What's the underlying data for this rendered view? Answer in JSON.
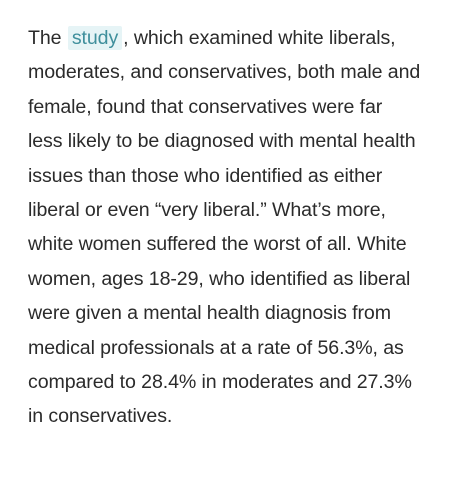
{
  "article": {
    "link_text": "study",
    "lines": [
      {
        "before": "The",
        "after": ", which examined white liberals,"
      },
      "moderates, and conservatives, both male and",
      "female, found that conservatives were far",
      "less likely to be diagnosed with mental health",
      "issues than those who identified as either",
      "liberal or even “very liberal.” What’s more,",
      "white women suffered the worst of all. White",
      "women, ages 18-29, who identified as liberal",
      "were given a mental health diagnosis from",
      "medical professionals at a rate of 56.3%, as",
      "compared to 28.4% in moderates and 27.3%",
      "in conservatives."
    ]
  },
  "colors": {
    "text": "#2b2b2b",
    "link_text": "#3f8f9c",
    "link_highlight": "#e6f4f6",
    "background": "#ffffff"
  }
}
